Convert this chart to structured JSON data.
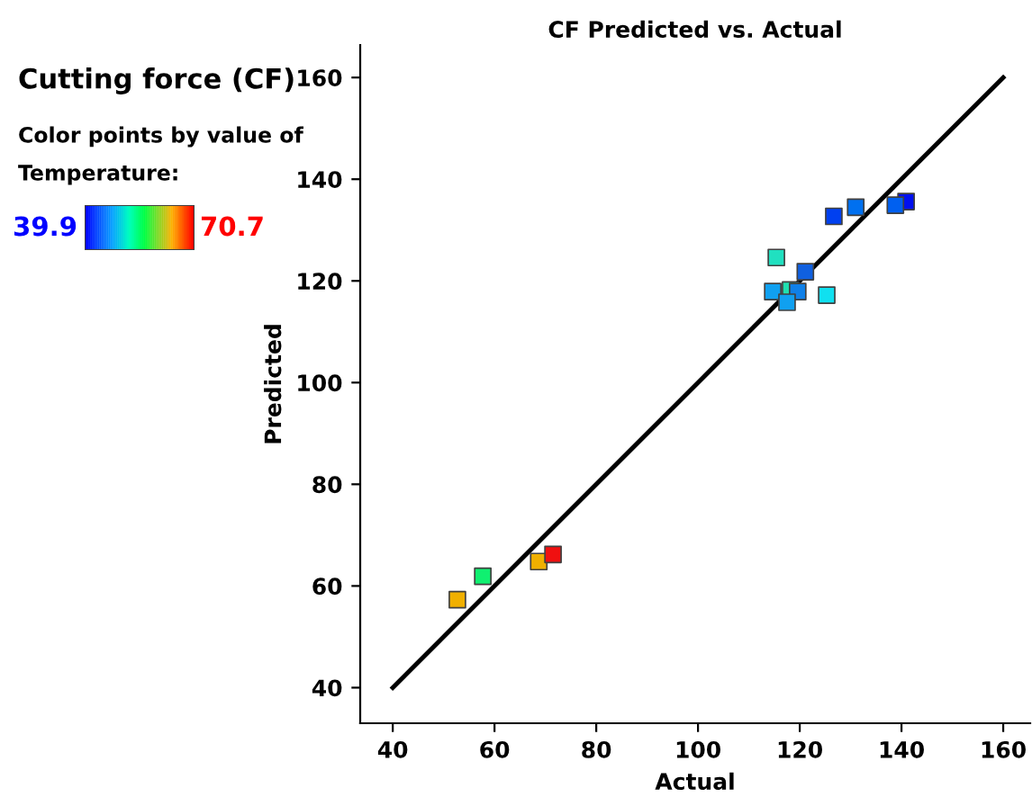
{
  "chart_data": {
    "type": "scatter",
    "title": "CF Predicted vs. Actual",
    "xlabel": "Actual",
    "ylabel": "Predicted",
    "annotations": [
      "Cutting force (CF)",
      "Color points by value of",
      "Temperature:",
      "39.9",
      "70.7"
    ],
    "xlim": [
      33.6,
      165.3
    ],
    "ylim": [
      33,
      166.4
    ],
    "xticks": [
      40,
      60,
      80,
      100,
      120,
      140,
      160
    ],
    "yticks": [
      40,
      60,
      80,
      100,
      120,
      140,
      160
    ],
    "grid": false,
    "legend": false,
    "marker": "square",
    "series": [
      {
        "type": "line",
        "color": "#000000",
        "x": [
          40,
          160
        ],
        "values": [
          40,
          160
        ],
        "marker": "none",
        "line_style": "solid"
      },
      {
        "x": [
          140.9,
          138.8,
          131,
          126.7,
          115.4,
          121.1,
          114.7,
          118.2,
          119.6,
          117.5,
          125.3,
          52.7,
          57.7,
          68.7,
          71.5
        ],
        "values": [
          135.6,
          134.9,
          134.5,
          132.7,
          124.6,
          121.8,
          117.9,
          118.2,
          117.9,
          115.8,
          117.2,
          57.3,
          61.9,
          64.8,
          66.2
        ],
        "colors": [
          "#0010f0",
          "#0060f0",
          "#0070f0",
          "#0040f0",
          "#20e0c0",
          "#1060e0",
          "#10a0f0",
          "#20e0b0",
          "#1080e8",
          "#10a0f0",
          "#10e0f0",
          "#f0b000",
          "#10f070",
          "#f0b000",
          "#f01010"
        ]
      }
    ]
  }
}
